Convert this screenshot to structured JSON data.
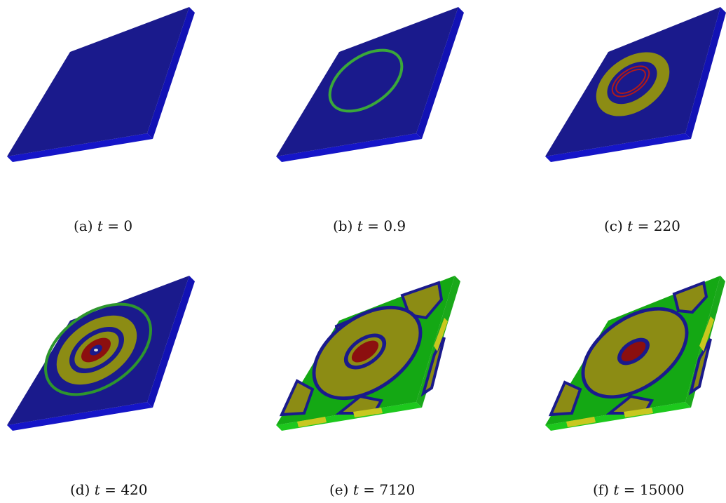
{
  "figure": {
    "panels": [
      {
        "label": "(a)",
        "var": "t",
        "value": "0"
      },
      {
        "label": "(b)",
        "var": "t",
        "value": "0.9"
      },
      {
        "label": "(c)",
        "var": "t",
        "value": "220"
      },
      {
        "label": "(d)",
        "var": "t",
        "value": "420"
      },
      {
        "label": "(e)",
        "var": "t",
        "value": "7120"
      },
      {
        "label": "(f)",
        "var": "t",
        "value": "15000"
      }
    ],
    "colors": {
      "background_phase": "#1a1a8c",
      "side": "#1515c8",
      "green_phase": "#14a814",
      "yellow_phase": "#8c8c14",
      "red_phase": "#8c0f0f",
      "edge_yellow": "#c8c81e"
    }
  }
}
